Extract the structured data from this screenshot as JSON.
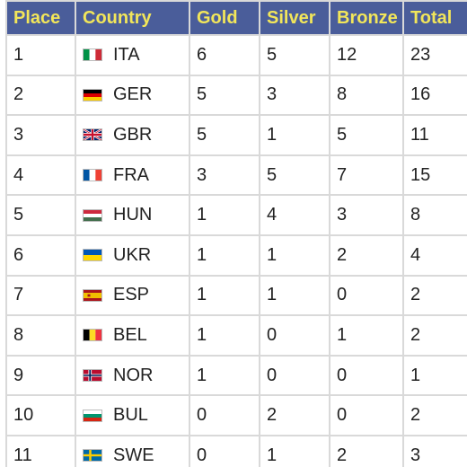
{
  "table": {
    "headers": [
      "Place",
      "Country",
      "Gold",
      "Silver",
      "Bronze",
      "Total"
    ],
    "rows": [
      {
        "place": "1",
        "country": "ITA",
        "flag": "italy-flag-icon",
        "gold": "6",
        "silver": "5",
        "bronze": "12",
        "total": "23"
      },
      {
        "place": "2",
        "country": "GER",
        "flag": "germany-flag-icon",
        "gold": "5",
        "silver": "3",
        "bronze": "8",
        "total": "16"
      },
      {
        "place": "3",
        "country": "GBR",
        "flag": "uk-flag-icon",
        "gold": "5",
        "silver": "1",
        "bronze": "5",
        "total": "11"
      },
      {
        "place": "4",
        "country": "FRA",
        "flag": "france-flag-icon",
        "gold": "3",
        "silver": "5",
        "bronze": "7",
        "total": "15"
      },
      {
        "place": "5",
        "country": "HUN",
        "flag": "hungary-flag-icon",
        "gold": "1",
        "silver": "4",
        "bronze": "3",
        "total": "8"
      },
      {
        "place": "6",
        "country": "UKR",
        "flag": "ukraine-flag-icon",
        "gold": "1",
        "silver": "1",
        "bronze": "2",
        "total": "4"
      },
      {
        "place": "7",
        "country": "ESP",
        "flag": "spain-flag-icon",
        "gold": "1",
        "silver": "1",
        "bronze": "0",
        "total": "2"
      },
      {
        "place": "8",
        "country": "BEL",
        "flag": "belgium-flag-icon",
        "gold": "1",
        "silver": "0",
        "bronze": "1",
        "total": "2"
      },
      {
        "place": "9",
        "country": "NOR",
        "flag": "norway-flag-icon",
        "gold": "1",
        "silver": "0",
        "bronze": "0",
        "total": "1"
      },
      {
        "place": "10",
        "country": "BUL",
        "flag": "bulgaria-flag-icon",
        "gold": "0",
        "silver": "2",
        "bronze": "0",
        "total": "2"
      },
      {
        "place": "11",
        "country": "SWE",
        "flag": "sweden-flag-icon",
        "gold": "0",
        "silver": "1",
        "bronze": "2",
        "total": "3"
      }
    ]
  },
  "colors": {
    "header_bg": "#4a5d9a",
    "header_text": "#f2e65a",
    "grid": "#d9d9d9",
    "body_text": "#222222"
  }
}
